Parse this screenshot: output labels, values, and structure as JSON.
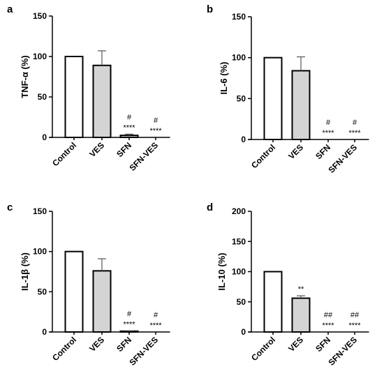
{
  "chart_data": [
    {
      "type": "bar",
      "panel": "a",
      "categories": [
        "Control",
        "VES",
        "SFN",
        "SFN-VES"
      ],
      "values": [
        100,
        89,
        2.5,
        0
      ],
      "error": [
        0,
        18,
        1.5,
        0
      ],
      "ylabel": "TNF-α (%)",
      "ylim": [
        0,
        150
      ],
      "yticks": [
        0,
        50,
        100,
        150
      ],
      "annotations": [
        {
          "category": "SFN",
          "lines": [
            "#",
            "****"
          ]
        },
        {
          "category": "SFN-VES",
          "lines": [
            "#",
            "****"
          ]
        }
      ],
      "fills": [
        "#ffffff",
        "#d4d4d4",
        "#d4d4d4",
        "#d4d4d4"
      ]
    },
    {
      "type": "bar",
      "panel": "b",
      "categories": [
        "Control",
        "VES",
        "SFN",
        "SFN-VES"
      ],
      "values": [
        100,
        84,
        0,
        0
      ],
      "error": [
        0,
        17,
        0,
        0
      ],
      "ylabel": "IL-6 (%)",
      "ylim": [
        0,
        150
      ],
      "yticks": [
        0,
        50,
        100,
        150
      ],
      "annotations": [
        {
          "category": "SFN",
          "lines": [
            "#",
            "****"
          ]
        },
        {
          "category": "SFN-VES",
          "lines": [
            "#",
            "****"
          ]
        }
      ],
      "fills": [
        "#ffffff",
        "#d4d4d4",
        "#d4d4d4",
        "#d4d4d4"
      ]
    },
    {
      "type": "bar",
      "panel": "c",
      "categories": [
        "Control",
        "VES",
        "SFN",
        "SFN-VES"
      ],
      "values": [
        100,
        76,
        1,
        0
      ],
      "error": [
        0,
        15,
        0.5,
        0
      ],
      "ylabel": "IL-1β (%)",
      "ylim": [
        0,
        150
      ],
      "yticks": [
        0,
        50,
        100,
        150
      ],
      "annotations": [
        {
          "category": "SFN",
          "lines": [
            "#",
            "****"
          ]
        },
        {
          "category": "SFN-VES",
          "lines": [
            "#",
            "****"
          ]
        }
      ],
      "fills": [
        "#ffffff",
        "#d4d4d4",
        "#d4d4d4",
        "#d4d4d4"
      ]
    },
    {
      "type": "bar",
      "panel": "d",
      "categories": [
        "Control",
        "VES",
        "SFN",
        "SFN-VES"
      ],
      "values": [
        100,
        56,
        0,
        0
      ],
      "error": [
        0,
        4,
        0,
        0
      ],
      "ylabel": "IL-10 (%)",
      "ylim": [
        0,
        200
      ],
      "yticks": [
        0,
        50,
        100,
        150,
        200
      ],
      "annotations": [
        {
          "category": "VES",
          "lines": [
            "**"
          ]
        },
        {
          "category": "SFN",
          "lines": [
            "##",
            "****"
          ]
        },
        {
          "category": "SFN-VES",
          "lines": [
            "##",
            "****"
          ]
        }
      ],
      "fills": [
        "#ffffff",
        "#d4d4d4",
        "#d4d4d4",
        "#d4d4d4"
      ]
    }
  ]
}
